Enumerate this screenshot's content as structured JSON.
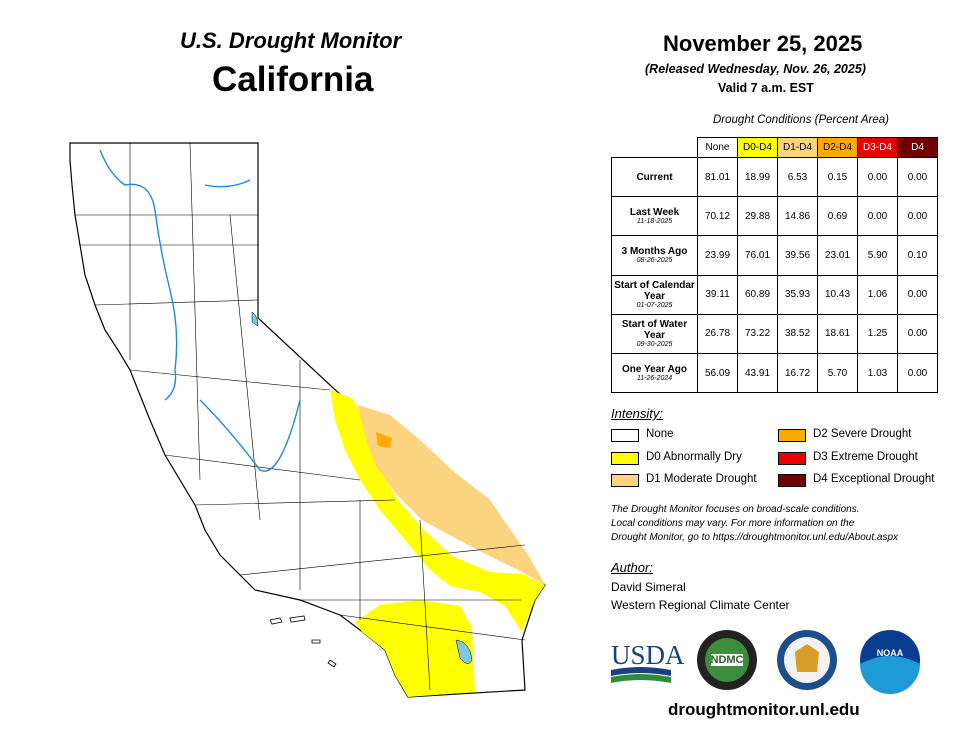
{
  "header": {
    "title": "U.S. Drought Monitor",
    "region": "California"
  },
  "date": {
    "main": "November 25, 2025",
    "released": "(Released Wednesday, Nov. 26, 2025)",
    "valid": "Valid 7 a.m. EST"
  },
  "table": {
    "caption": "Drought Conditions (Percent Area)",
    "columns": [
      {
        "label": "None",
        "color": "#ffffff",
        "text": "#000000"
      },
      {
        "label": "D0-D4",
        "color": "#ffff00",
        "text": "#000000"
      },
      {
        "label": "D1-D4",
        "color": "#fcd37f",
        "text": "#000000"
      },
      {
        "label": "D2-D4",
        "color": "#ffaa00",
        "text": "#000000"
      },
      {
        "label": "D3-D4",
        "color": "#e60000",
        "text": "#ffffff"
      },
      {
        "label": "D4",
        "color": "#730000",
        "text": "#ffffff"
      }
    ],
    "rows": [
      {
        "label": "Current",
        "values": [
          "81.01",
          "18.99",
          "6.53",
          "0.15",
          "0.00",
          "0.00"
        ]
      },
      {
        "label": "Last Week",
        "date": "11-18-2025",
        "values": [
          "70.12",
          "29.88",
          "14.86",
          "0.69",
          "0.00",
          "0.00"
        ]
      },
      {
        "label": "3 Months Ago",
        "date": "08-26-2025",
        "values": [
          "23.99",
          "76.01",
          "39.56",
          "23.01",
          "5.90",
          "0.10"
        ]
      },
      {
        "label": "Start of Calendar Year",
        "date": "01-07-2025",
        "values": [
          "39.11",
          "60.89",
          "35.93",
          "10.43",
          "1.06",
          "0.00"
        ]
      },
      {
        "label": "Start of Water Year",
        "date": "09-30-2025",
        "values": [
          "26.78",
          "73.22",
          "38.52",
          "18.61",
          "1.25",
          "0.00"
        ]
      },
      {
        "label": "One Year Ago",
        "date": "11-26-2024",
        "values": [
          "56.09",
          "43.91",
          "16.72",
          "5.70",
          "1.03",
          "0.00"
        ]
      }
    ]
  },
  "legend": {
    "title": "Intensity:",
    "items": [
      {
        "label": "None",
        "color": "#ffffff"
      },
      {
        "label": "D0 Abnormally Dry",
        "color": "#ffff00"
      },
      {
        "label": "D1 Moderate Drought",
        "color": "#fcd37f"
      },
      {
        "label": "D2 Severe Drought",
        "color": "#ffaa00"
      },
      {
        "label": "D3 Extreme Drought",
        "color": "#e60000"
      },
      {
        "label": "D4 Exceptional Drought",
        "color": "#730000"
      }
    ]
  },
  "note": [
    "The Drought Monitor focuses on broad-scale conditions.",
    "Local conditions may vary. For more information on the",
    "Drought Monitor, go to https://droughtmonitor.unl.edu/About.aspx"
  ],
  "author": {
    "title": "Author:",
    "name": "David Simeral",
    "org": "Western Regional Climate Center"
  },
  "logos": {
    "usda": "USDA",
    "ndmc": "NDMC",
    "noaa": "NOAA"
  },
  "url": "droughtmonitor.unl.edu"
}
